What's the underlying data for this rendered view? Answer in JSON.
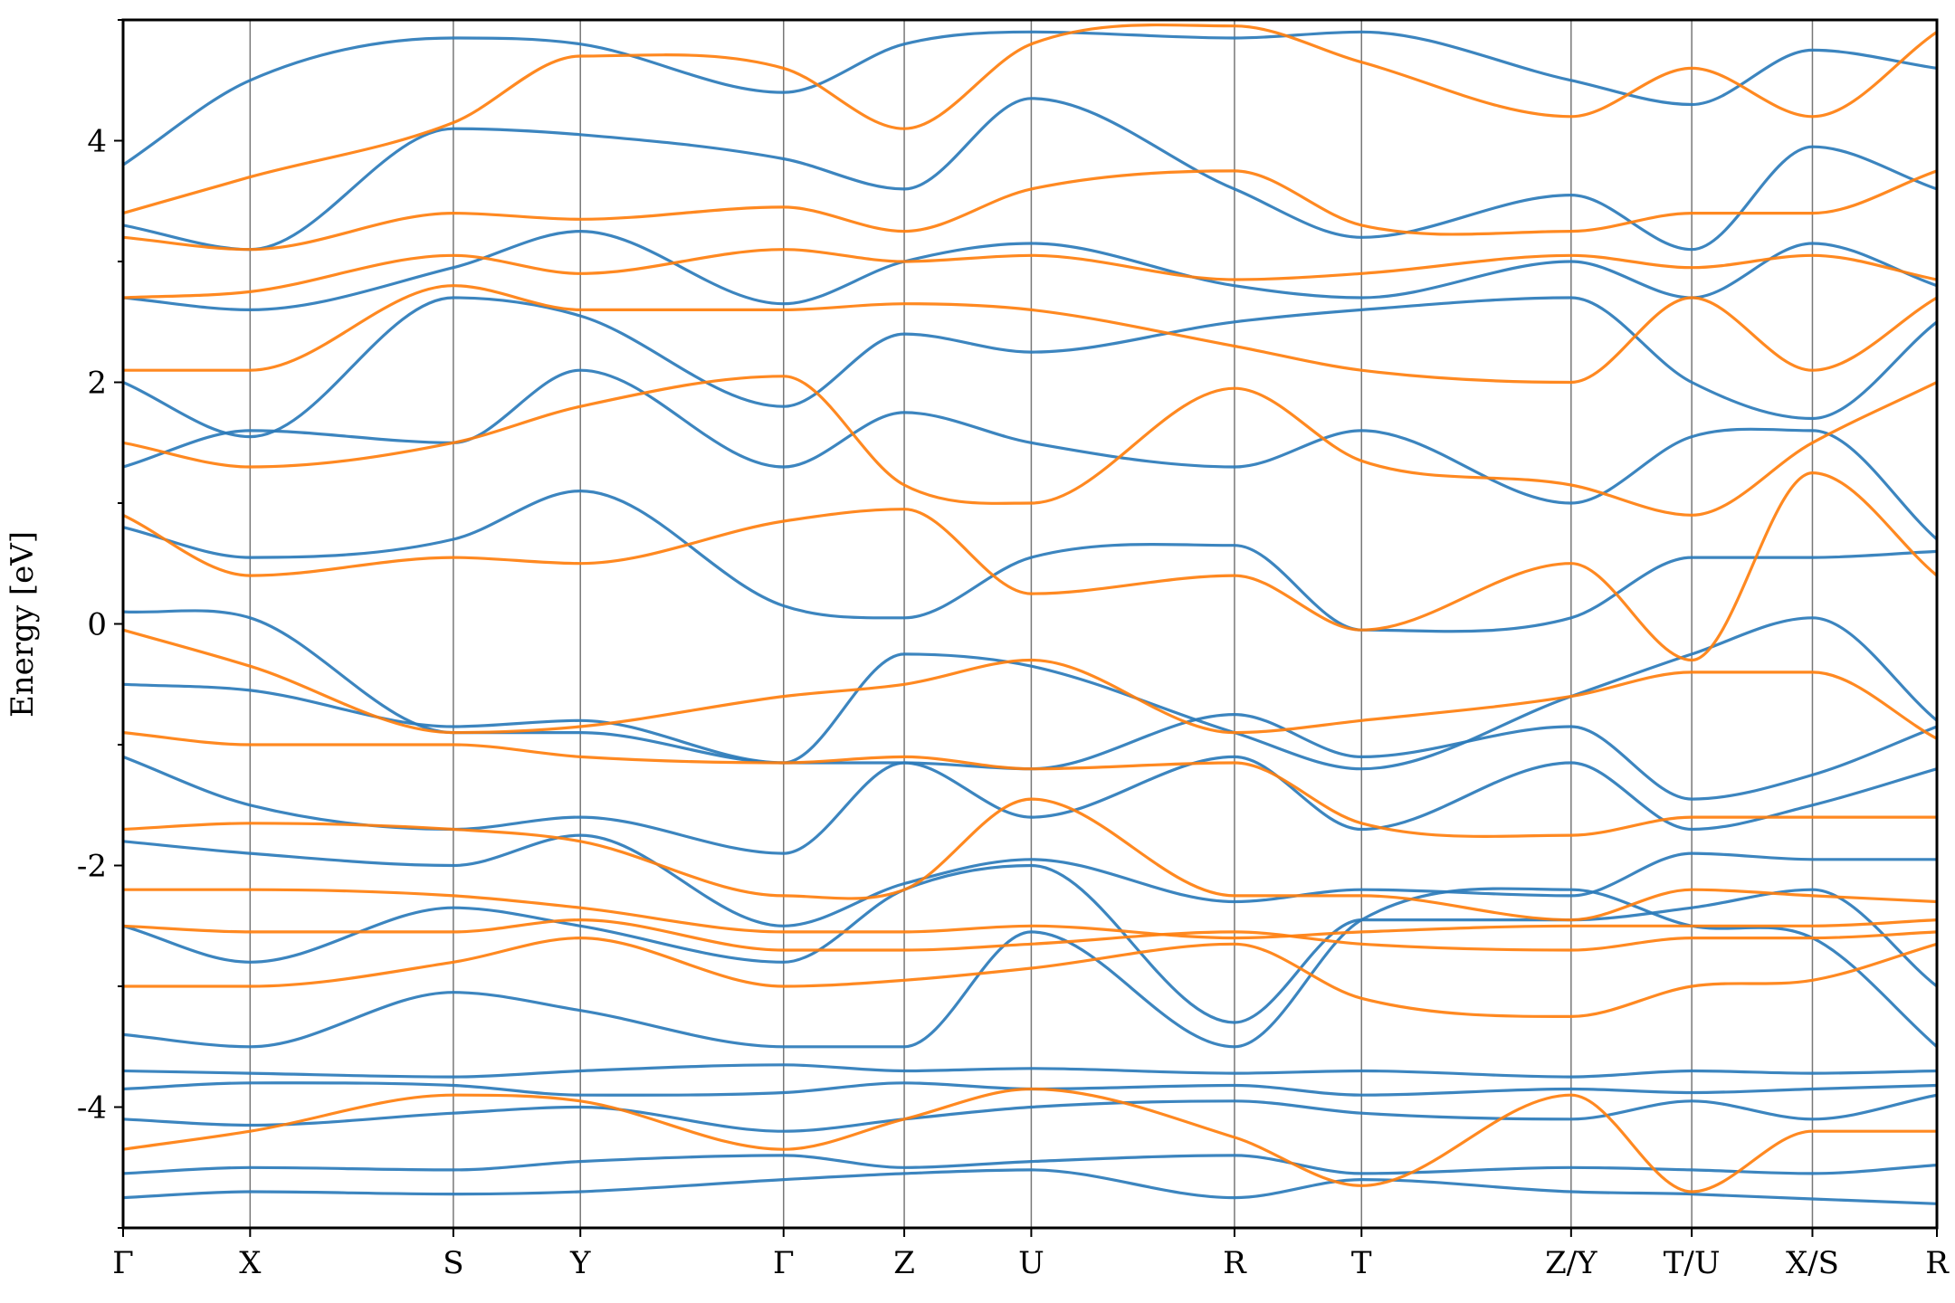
{
  "chart_data": {
    "type": "line",
    "title": "",
    "xlabel": "",
    "ylabel": "Energy [eV]",
    "ylim": [
      -5,
      5
    ],
    "yticks": [
      -4,
      -2,
      0,
      2,
      4
    ],
    "ytick_labels": [
      "-4",
      "-2",
      "0",
      "2",
      "4"
    ],
    "xlim": [
      0,
      14.28
    ],
    "kpath": [
      {
        "label": "Γ",
        "x": 0.0
      },
      {
        "label": "X",
        "x": 1.0
      },
      {
        "label": "S",
        "x": 2.6
      },
      {
        "label": "Y",
        "x": 3.6
      },
      {
        "label": "Γ",
        "x": 5.2
      },
      {
        "label": "Z",
        "x": 6.15
      },
      {
        "label": "U",
        "x": 7.15
      },
      {
        "label": "R",
        "x": 8.75
      },
      {
        "label": "T",
        "x": 9.75
      },
      {
        "label": "Z/Y",
        "x": 11.4
      },
      {
        "label": "T/U",
        "x": 12.35
      },
      {
        "label": "X/S",
        "x": 13.3
      },
      {
        "label": "R",
        "x": 14.28
      }
    ],
    "grid": false,
    "legend": "none",
    "colors": {
      "spin_a": "#2b7bba",
      "spin_b": "#ff7f0e"
    },
    "series": [
      {
        "color": "#2b7bba",
        "y": [
          -4.75,
          -4.7,
          -4.72,
          -4.7,
          -4.6,
          -4.55,
          -4.52,
          -4.75,
          -4.6,
          -4.7,
          -4.72,
          -4.76,
          -4.8
        ]
      },
      {
        "color": "#2b7bba",
        "y": [
          -4.55,
          -4.5,
          -4.52,
          -4.45,
          -4.4,
          -4.5,
          -4.45,
          -4.4,
          -4.55,
          -4.5,
          -4.52,
          -4.55,
          -4.48
        ]
      },
      {
        "color": "#2b7bba",
        "y": [
          -4.1,
          -4.15,
          -4.05,
          -4.0,
          -4.2,
          -4.1,
          -4.0,
          -3.95,
          -4.05,
          -4.1,
          -3.95,
          -4.1,
          -3.9
        ]
      },
      {
        "color": "#2b7bba",
        "y": [
          -3.85,
          -3.8,
          -3.82,
          -3.9,
          -3.88,
          -3.8,
          -3.85,
          -3.82,
          -3.9,
          -3.85,
          -3.88,
          -3.85,
          -3.82
        ]
      },
      {
        "color": "#2b7bba",
        "y": [
          -3.7,
          -3.72,
          -3.75,
          -3.7,
          -3.65,
          -3.7,
          -3.68,
          -3.72,
          -3.7,
          -3.75,
          -3.7,
          -3.72,
          -3.7
        ]
      },
      {
        "color": "#2b7bba",
        "y": [
          -3.4,
          -3.5,
          -3.05,
          -3.2,
          -3.5,
          -3.5,
          -2.55,
          -3.5,
          -2.45,
          -2.2,
          -2.5,
          -2.6,
          -3.5
        ]
      },
      {
        "color": "#2b7bba",
        "y": [
          -2.5,
          -2.8,
          -2.35,
          -2.5,
          -2.8,
          -2.2,
          -2.0,
          -3.3,
          -2.45,
          -2.45,
          -2.35,
          -2.2,
          -3.0
        ]
      },
      {
        "color": "#2b7bba",
        "y": [
          -1.8,
          -1.9,
          -2.0,
          -1.75,
          -2.5,
          -2.15,
          -1.95,
          -2.3,
          -2.2,
          -2.25,
          -1.9,
          -1.95,
          -1.95
        ]
      },
      {
        "color": "#2b7bba",
        "y": [
          -1.1,
          -1.5,
          -1.7,
          -1.6,
          -1.9,
          -1.15,
          -1.6,
          -1.1,
          -1.7,
          -1.15,
          -1.7,
          -1.5,
          -1.2
        ]
      },
      {
        "color": "#2b7bba",
        "y": [
          -0.5,
          -0.55,
          -0.85,
          -0.8,
          -1.15,
          -1.15,
          -1.2,
          -0.75,
          -1.1,
          -0.85,
          -1.45,
          -1.25,
          -0.85
        ]
      },
      {
        "color": "#2b7bba",
        "y": [
          0.1,
          0.05,
          -0.9,
          -0.9,
          -1.15,
          -0.25,
          -0.35,
          -0.9,
          -1.2,
          -0.6,
          -0.25,
          0.05,
          -0.8
        ]
      },
      {
        "color": "#2b7bba",
        "y": [
          0.8,
          0.55,
          0.7,
          1.1,
          0.15,
          0.05,
          0.55,
          0.65,
          -0.05,
          0.05,
          0.55,
          0.55,
          0.6
        ]
      },
      {
        "color": "#2b7bba",
        "y": [
          1.3,
          1.6,
          1.5,
          2.1,
          1.3,
          1.75,
          1.5,
          1.3,
          1.6,
          1.0,
          1.55,
          1.6,
          0.7
        ]
      },
      {
        "color": "#2b7bba",
        "y": [
          2.0,
          1.55,
          2.7,
          2.55,
          1.8,
          2.4,
          2.25,
          2.5,
          2.6,
          2.7,
          2.0,
          1.7,
          2.5
        ]
      },
      {
        "color": "#2b7bba",
        "y": [
          2.7,
          2.6,
          2.95,
          3.25,
          2.65,
          3.0,
          3.15,
          2.8,
          2.7,
          3.0,
          2.7,
          3.15,
          2.8
        ]
      },
      {
        "color": "#2b7bba",
        "y": [
          3.3,
          3.1,
          4.1,
          4.05,
          3.85,
          3.6,
          4.35,
          3.6,
          3.2,
          3.55,
          3.1,
          3.95,
          3.6
        ]
      },
      {
        "color": "#2b7bba",
        "y": [
          3.8,
          4.5,
          4.85,
          4.8,
          4.4,
          4.8,
          4.9,
          4.85,
          4.9,
          4.5,
          4.3,
          4.75,
          4.6
        ]
      },
      {
        "color": "#ff7f0e",
        "y": [
          -4.35,
          -4.2,
          -3.9,
          -3.95,
          -4.35,
          -4.1,
          -3.85,
          -4.25,
          -4.65,
          -3.9,
          -4.7,
          -4.2,
          -4.2
        ]
      },
      {
        "color": "#ff7f0e",
        "y": [
          -3.0,
          -3.0,
          -2.8,
          -2.6,
          -3.0,
          -2.95,
          -2.85,
          -2.65,
          -3.1,
          -3.25,
          -3.0,
          -2.95,
          -2.65
        ]
      },
      {
        "color": "#ff7f0e",
        "y": [
          -2.5,
          -2.55,
          -2.55,
          -2.45,
          -2.7,
          -2.7,
          -2.65,
          -2.55,
          -2.65,
          -2.7,
          -2.6,
          -2.6,
          -2.55
        ]
      },
      {
        "color": "#ff7f0e",
        "y": [
          -2.2,
          -2.2,
          -2.25,
          -2.35,
          -2.55,
          -2.55,
          -2.5,
          -2.6,
          -2.55,
          -2.5,
          -2.5,
          -2.5,
          -2.45
        ]
      },
      {
        "color": "#ff7f0e",
        "y": [
          -1.7,
          -1.65,
          -1.7,
          -1.8,
          -2.25,
          -2.2,
          -1.45,
          -2.25,
          -2.25,
          -2.45,
          -2.2,
          -2.25,
          -2.3
        ]
      },
      {
        "color": "#ff7f0e",
        "y": [
          -0.9,
          -1.0,
          -1.0,
          -1.1,
          -1.15,
          -1.1,
          -1.2,
          -1.15,
          -1.65,
          -1.75,
          -1.6,
          -1.6,
          -1.6
        ]
      },
      {
        "color": "#ff7f0e",
        "y": [
          -0.05,
          -0.35,
          -0.9,
          -0.85,
          -0.6,
          -0.5,
          -0.3,
          -0.9,
          -0.8,
          -0.6,
          -0.4,
          -0.4,
          -0.95
        ]
      },
      {
        "color": "#ff7f0e",
        "y": [
          0.9,
          0.4,
          0.55,
          0.5,
          0.85,
          0.95,
          0.25,
          0.4,
          -0.05,
          0.5,
          -0.3,
          1.25,
          0.4
        ]
      },
      {
        "color": "#ff7f0e",
        "y": [
          1.5,
          1.3,
          1.5,
          1.8,
          2.05,
          1.15,
          1.0,
          1.95,
          1.35,
          1.15,
          0.9,
          1.5,
          2.0
        ]
      },
      {
        "color": "#ff7f0e",
        "y": [
          2.1,
          2.1,
          2.8,
          2.6,
          2.6,
          2.65,
          2.6,
          2.3,
          2.1,
          2.0,
          2.7,
          2.1,
          2.7
        ]
      },
      {
        "color": "#ff7f0e",
        "y": [
          2.7,
          2.75,
          3.05,
          2.9,
          3.1,
          3.0,
          3.05,
          2.85,
          2.9,
          3.05,
          2.95,
          3.05,
          2.85
        ]
      },
      {
        "color": "#ff7f0e",
        "y": [
          3.2,
          3.1,
          3.4,
          3.35,
          3.45,
          3.25,
          3.6,
          3.75,
          3.3,
          3.25,
          3.4,
          3.4,
          3.75
        ]
      },
      {
        "color": "#ff7f0e",
        "y": [
          3.4,
          3.7,
          4.15,
          4.7,
          4.6,
          4.1,
          4.8,
          4.95,
          4.65,
          4.2,
          4.6,
          4.2,
          4.9
        ]
      }
    ]
  }
}
